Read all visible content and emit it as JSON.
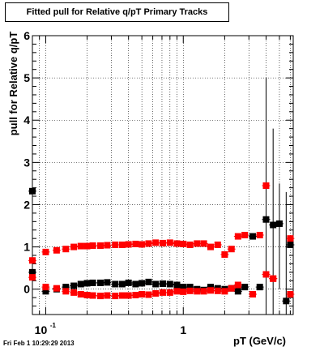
{
  "title": "Fitted pull for Relative q/pT  Primary Tracks",
  "xlabel": "pT (GeV/c)",
  "ylabel": "pull for Relative q/pT",
  "timestamp": "Fri Feb  1 10:29:29 2013",
  "colors": {
    "series_a": "#000000",
    "series_b": "#ff0000",
    "axis": "#000000",
    "grid": "#000000"
  },
  "chart_data": {
    "type": "scatter",
    "title": "Fitted pull for Relative q/pT  Primary Tracks",
    "xlabel": "pT (GeV/c)",
    "ylabel": "pull for Relative q/pT",
    "x_scale": "log",
    "xlim": [
      0.08,
      6.3
    ],
    "ylim": [
      -0.6,
      6
    ],
    "grid": true,
    "legend": "none",
    "xticks": [
      {
        "value": 0.1,
        "base": "10",
        "exp": "-1"
      },
      {
        "value": 1,
        "label": "1"
      }
    ],
    "yticks": [
      0,
      1,
      2,
      3,
      4,
      5,
      6
    ],
    "series": [
      {
        "color": "#000000",
        "marker": "square",
        "x": [
          0.08,
          0.08,
          0.1,
          0.12,
          0.14,
          0.16,
          0.18,
          0.2,
          0.22,
          0.25,
          0.28,
          0.32,
          0.36,
          0.4,
          0.45,
          0.5,
          0.56,
          0.63,
          0.71,
          0.8,
          0.9,
          1.0,
          1.12,
          1.26,
          1.41,
          1.58,
          1.78,
          2.0,
          2.24,
          2.5,
          2.8,
          3.2,
          3.6,
          4.0,
          4.5,
          5.0,
          5.6,
          6.0
        ],
        "values": [
          2.32,
          0.4,
          -0.05,
          0.0,
          0.05,
          0.08,
          0.12,
          0.14,
          0.15,
          0.15,
          0.16,
          0.12,
          0.12,
          0.15,
          0.12,
          0.14,
          0.17,
          0.12,
          0.13,
          0.12,
          0.1,
          0.05,
          0.05,
          0.0,
          -0.02,
          0.05,
          0.02,
          0.0,
          0.02,
          -0.05,
          0.05,
          1.25,
          0.05,
          1.65,
          1.52,
          1.55,
          -0.28,
          1.05
        ]
      },
      {
        "color": "#ff0000",
        "marker": "square",
        "x": [
          0.08,
          0.08,
          0.1,
          0.12,
          0.14,
          0.16,
          0.18,
          0.2,
          0.22,
          0.25,
          0.28,
          0.32,
          0.36,
          0.4,
          0.45,
          0.5,
          0.56,
          0.63,
          0.71,
          0.8,
          0.9,
          1.0,
          1.12,
          1.26,
          1.41,
          1.58,
          1.78,
          2.0,
          2.24,
          2.5,
          2.8,
          3.2,
          3.6,
          4.0,
          4.5,
          6.0,
          6.0
        ],
        "values": [
          0.68,
          0.28,
          0.88,
          0.92,
          0.95,
          1.0,
          1.02,
          1.02,
          1.03,
          1.03,
          1.04,
          1.05,
          1.05,
          1.06,
          1.07,
          1.06,
          1.08,
          1.1,
          1.09,
          1.1,
          1.08,
          1.07,
          1.05,
          1.08,
          1.08,
          1.0,
          1.05,
          0.82,
          0.95,
          1.25,
          1.28,
          -0.12,
          1.28,
          2.45,
          0.25,
          1.2,
          -0.12
        ]
      },
      {
        "color": "#ff0000",
        "marker": "square",
        "x": [
          0.1,
          0.12,
          0.14,
          0.16,
          0.18,
          0.2,
          0.22,
          0.25,
          0.28,
          0.32,
          0.36,
          0.4,
          0.45,
          0.5,
          0.56,
          0.63,
          0.71,
          0.8,
          0.9,
          1.0,
          1.12,
          1.26,
          1.41,
          1.58,
          1.78,
          2.0,
          2.24,
          2.5,
          4.0,
          4.5
        ],
        "values": [
          0.05,
          0.02,
          -0.05,
          -0.08,
          -0.12,
          -0.14,
          -0.15,
          -0.16,
          -0.15,
          -0.16,
          -0.15,
          -0.15,
          -0.14,
          -0.12,
          -0.13,
          -0.1,
          -0.08,
          -0.08,
          -0.05,
          -0.06,
          -0.04,
          -0.05,
          -0.05,
          -0.03,
          -0.04,
          -0.05,
          0.02,
          0.1,
          0.35,
          0.25
        ]
      }
    ]
  }
}
